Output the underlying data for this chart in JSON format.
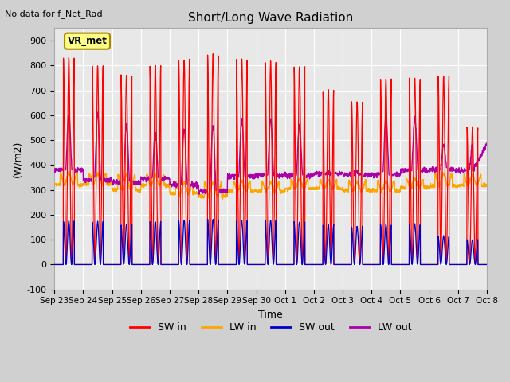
{
  "title": "Short/Long Wave Radiation",
  "ylabel": "(W/m2)",
  "xlabel": "Time",
  "top_left_text": "No data for f_Net_Rad",
  "station_label": "VR_met",
  "ylim": [
    -100,
    950
  ],
  "yticks": [
    -100,
    0,
    100,
    200,
    300,
    400,
    500,
    600,
    700,
    800,
    900
  ],
  "x_tick_labels": [
    "Sep 23",
    "Sep 24",
    "Sep 25",
    "Sep 26",
    "Sep 27",
    "Sep 28",
    "Sep 29",
    "Sep 30",
    "Oct 1",
    "Oct 2",
    "Oct 3",
    "Oct 4",
    "Oct 5",
    "Oct 6",
    "Oct 7",
    "Oct 8"
  ],
  "legend_entries": [
    "SW in",
    "LW in",
    "SW out",
    "LW out"
  ],
  "colors": {
    "SW_in": "#ff0000",
    "LW_in": "#ffa500",
    "SW_out": "#0000cc",
    "LW_out": "#aa00aa"
  },
  "fig_bg": "#d0d0d0",
  "plot_bg": "#e8e8e8",
  "n_days": 15,
  "SW_in_peaks": [
    830,
    800,
    760,
    800,
    825,
    848,
    830,
    820,
    800,
    705,
    655,
    748,
    750,
    758,
    553
  ],
  "SW_out_peaks": [
    175,
    172,
    160,
    172,
    178,
    183,
    178,
    178,
    172,
    160,
    152,
    162,
    162,
    115,
    100
  ],
  "LW_in_baseline": [
    320,
    325,
    300,
    320,
    285,
    275,
    295,
    295,
    305,
    305,
    298,
    298,
    310,
    315,
    318
  ],
  "LW_in_day_bump": [
    50,
    40,
    60,
    40,
    45,
    55,
    40,
    35,
    40,
    35,
    35,
    35,
    35,
    50,
    40
  ],
  "LW_out_night": [
    380,
    340,
    330,
    345,
    320,
    295,
    355,
    358,
    358,
    365,
    362,
    362,
    378,
    382,
    378
  ],
  "LW_out_peaks": [
    605,
    610,
    560,
    530,
    540,
    560,
    580,
    580,
    560,
    370,
    370,
    590,
    590,
    480,
    480
  ]
}
